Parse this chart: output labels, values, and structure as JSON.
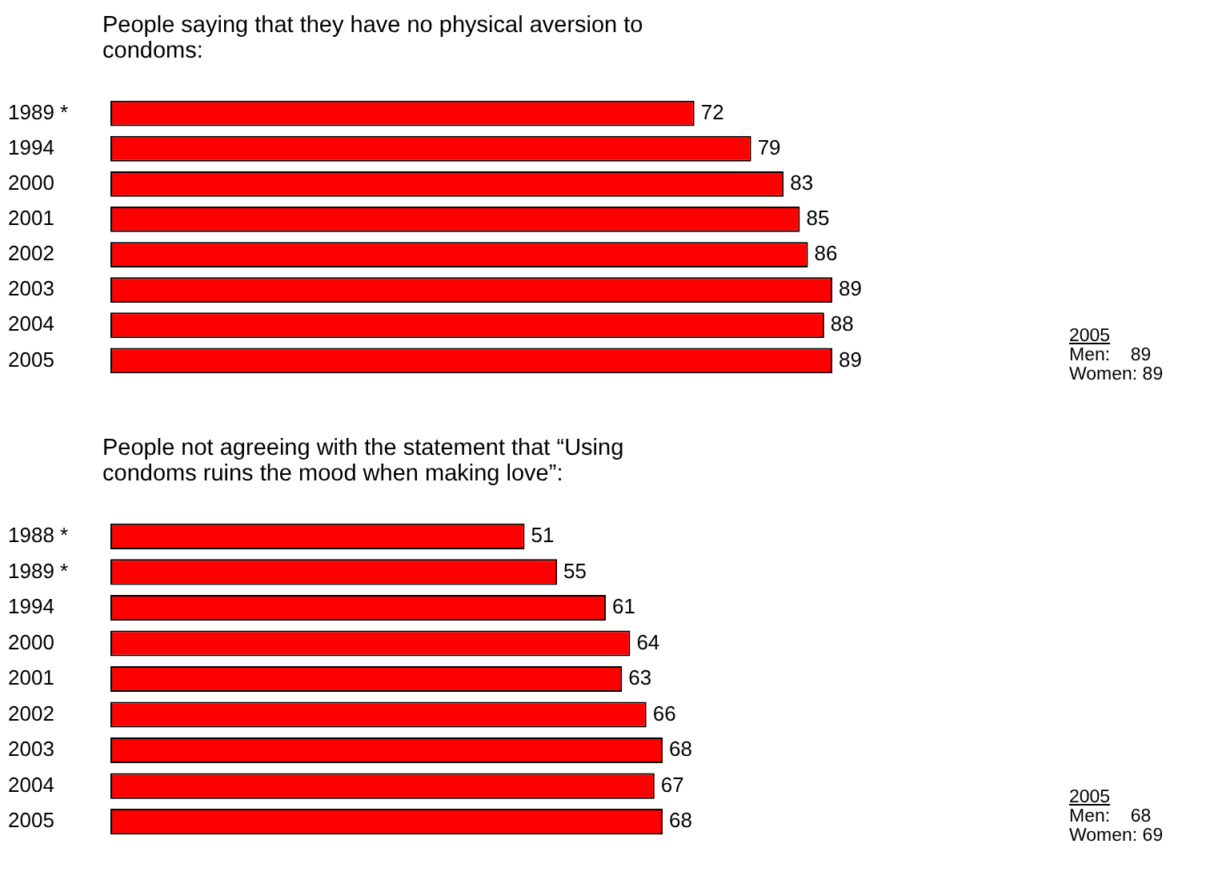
{
  "chart_data": [
    {
      "type": "bar",
      "orientation": "horizontal",
      "title": "People saying that they have no physical aversion to condoms:",
      "categories": [
        "1989 *",
        "1994",
        "2000",
        "2001",
        "2002",
        "2003",
        "2004",
        "2005"
      ],
      "values": [
        72,
        79,
        83,
        85,
        86,
        89,
        88,
        89
      ],
      "color": "#ff0000",
      "data_labels": true,
      "tick_labels": "y",
      "annotations": [
        "2005",
        "Men:    89",
        "Women: 89"
      ]
    },
    {
      "type": "bar",
      "orientation": "horizontal",
      "title": "People not agreeing with the statement that “Using condoms ruins the mood when making love”:",
      "categories": [
        "1988 *",
        "1989 *",
        "1994",
        "2000",
        "2001",
        "2002",
        "2003",
        "2004",
        "2005"
      ],
      "values": [
        51,
        55,
        61,
        64,
        63,
        66,
        68,
        67,
        68
      ],
      "color": "#ff0000",
      "data_labels": true,
      "tick_labels": "y",
      "annotations": [
        "2005",
        "Men:    68",
        "Women: 69"
      ]
    }
  ]
}
